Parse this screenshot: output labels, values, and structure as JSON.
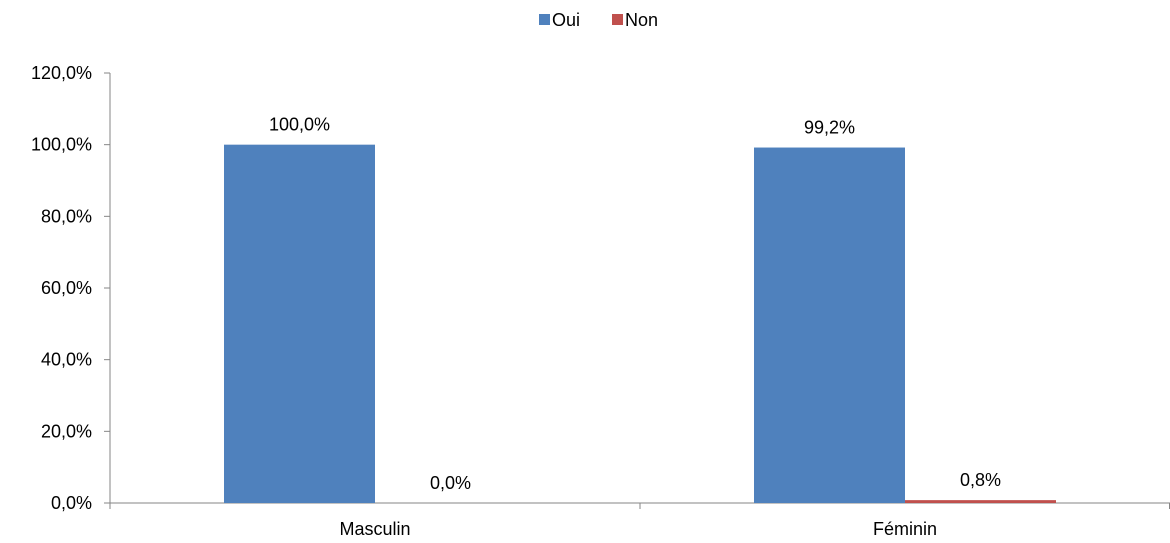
{
  "chart_data": {
    "type": "bar",
    "categories": [
      "Masculin",
      "Féminin"
    ],
    "series": [
      {
        "name": "Oui",
        "color": "#4F81BD",
        "values": [
          100.0,
          99.2
        ],
        "labels": [
          "100,0%",
          "99,2%"
        ]
      },
      {
        "name": "Non",
        "color": "#C0504D",
        "values": [
          0.0,
          0.8
        ],
        "labels": [
          "0,0%",
          "0,8%"
        ]
      }
    ],
    "ylim": [
      0,
      120
    ],
    "yticks": [
      0,
      20,
      40,
      60,
      80,
      100,
      120
    ],
    "ytick_labels": [
      "0,0%",
      "20,0%",
      "40,0%",
      "60,0%",
      "80,0%",
      "100,0%",
      "120,0%"
    ],
    "legend_position": "top-center",
    "grid": false
  }
}
